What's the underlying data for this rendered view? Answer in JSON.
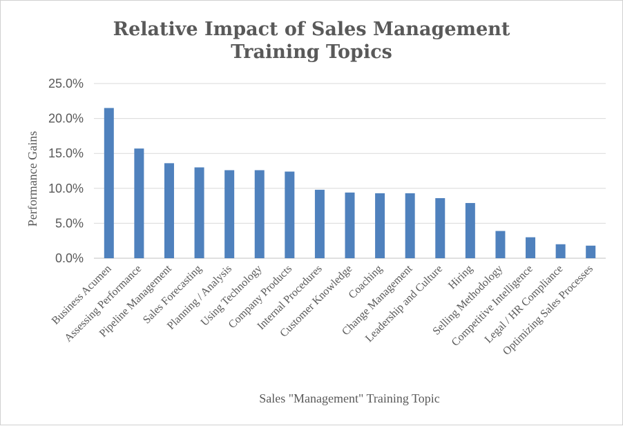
{
  "chart_data": {
    "type": "bar",
    "title_lines": [
      "Relative Impact of  Sales Management",
      "Training Topics"
    ],
    "xlabel": "Sales \"Management\" Training Topic",
    "ylabel": "Performance Gains",
    "ylim": [
      0,
      25
    ],
    "yticks": [
      0,
      5,
      10,
      15,
      20,
      25
    ],
    "ytick_labels": [
      "0.0%",
      "5.0%",
      "10.0%",
      "15.0%",
      "20.0%",
      "25.0%"
    ],
    "grid": true,
    "legend": "none",
    "bar_color": "#4f81bd",
    "categories": [
      "Business Acumen",
      "Assessing Performance",
      "Pipeline Management",
      "Sales Forecasting",
      "Planning / Analysis",
      "Using Technology",
      "Company Products",
      "Internal Procedures",
      "Customer Knowledge",
      "Coaching",
      "Change Management",
      "Leadership and Culture",
      "Hiring",
      "Selling Methodology",
      "Competitive Intelligence",
      "Legal / HR Compliance",
      "Optimizing Sales Processes"
    ],
    "values": [
      21.5,
      15.7,
      13.6,
      13.0,
      12.6,
      12.6,
      12.4,
      9.8,
      9.4,
      9.3,
      9.3,
      8.6,
      7.9,
      3.9,
      3.0,
      2.0,
      1.8
    ]
  }
}
